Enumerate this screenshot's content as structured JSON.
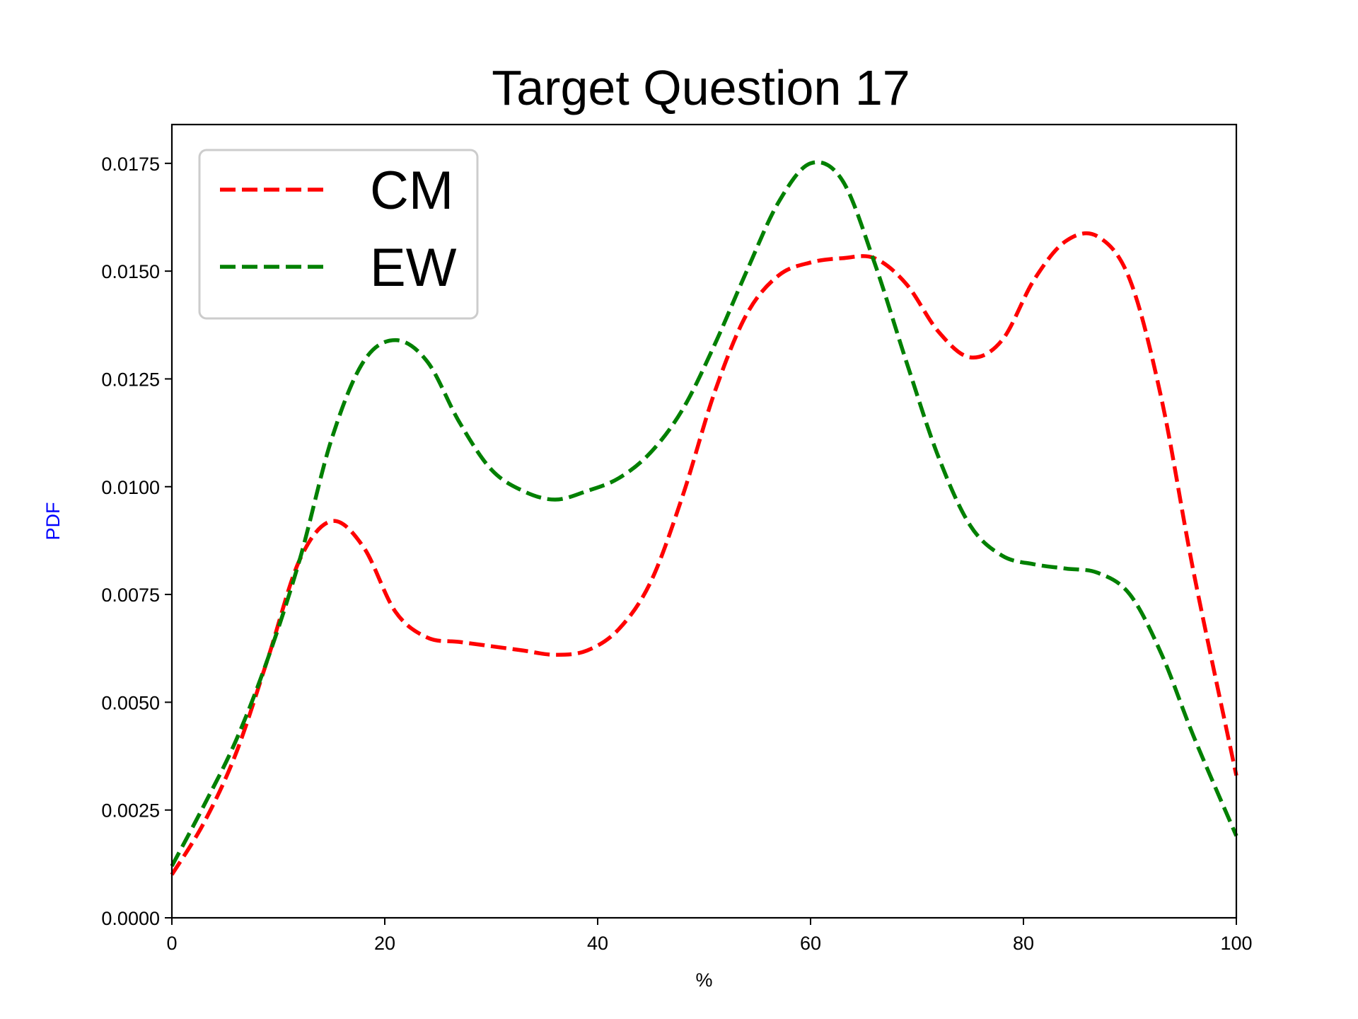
{
  "chart_data": {
    "type": "line",
    "title": "Target Question 17",
    "xlabel": "%",
    "ylabel": "PDF",
    "ylabel_color": "#0000ff",
    "xlim": [
      0,
      100
    ],
    "ylim": [
      0,
      0.0184
    ],
    "xticks": [
      0,
      20,
      40,
      60,
      80,
      100
    ],
    "xtick_labels": [
      "0",
      "20",
      "40",
      "60",
      "80",
      "100"
    ],
    "yticks": [
      0,
      0.0025,
      0.005,
      0.0075,
      0.01,
      0.0125,
      0.015,
      0.0175
    ],
    "ytick_labels": [
      "0.0000",
      "0.0025",
      "0.0050",
      "0.0075",
      "0.0100",
      "0.0125",
      "0.0150",
      "0.0175"
    ],
    "grid": false,
    "legend_position": "top-left",
    "series": [
      {
        "name": "CM",
        "color": "#ff0000",
        "style": "dashed",
        "x": [
          0,
          3,
          6,
          9,
          12,
          15,
          18,
          21,
          24,
          27,
          30,
          33,
          36,
          39,
          42,
          45,
          48,
          51,
          54,
          57,
          60,
          63,
          66,
          69,
          72,
          75,
          78,
          81,
          84,
          87,
          90,
          93,
          96,
          100
        ],
        "y": [
          0.001,
          0.0022,
          0.0038,
          0.006,
          0.0083,
          0.0092,
          0.0086,
          0.0071,
          0.0065,
          0.0064,
          0.0063,
          0.0062,
          0.0061,
          0.0062,
          0.0067,
          0.0078,
          0.0098,
          0.0122,
          0.014,
          0.0149,
          0.0152,
          0.0153,
          0.0153,
          0.0147,
          0.0136,
          0.013,
          0.0134,
          0.0148,
          0.0157,
          0.0158,
          0.0148,
          0.012,
          0.008,
          0.0033
        ]
      },
      {
        "name": "EW",
        "color": "#008000",
        "style": "dashed",
        "x": [
          0,
          3,
          6,
          9,
          12,
          15,
          18,
          21,
          24,
          27,
          30,
          33,
          36,
          39,
          42,
          45,
          48,
          51,
          54,
          57,
          60,
          63,
          66,
          69,
          72,
          75,
          78,
          81,
          84,
          87,
          90,
          93,
          96,
          100
        ],
        "y": [
          0.0012,
          0.0026,
          0.0041,
          0.006,
          0.0083,
          0.0111,
          0.0129,
          0.0134,
          0.0129,
          0.0115,
          0.0104,
          0.0099,
          0.0097,
          0.0099,
          0.0102,
          0.0108,
          0.0118,
          0.0133,
          0.015,
          0.0166,
          0.0175,
          0.0171,
          0.0152,
          0.0129,
          0.0107,
          0.0091,
          0.0084,
          0.0082,
          0.0081,
          0.008,
          0.0075,
          0.0061,
          0.0042,
          0.0019
        ]
      }
    ]
  }
}
